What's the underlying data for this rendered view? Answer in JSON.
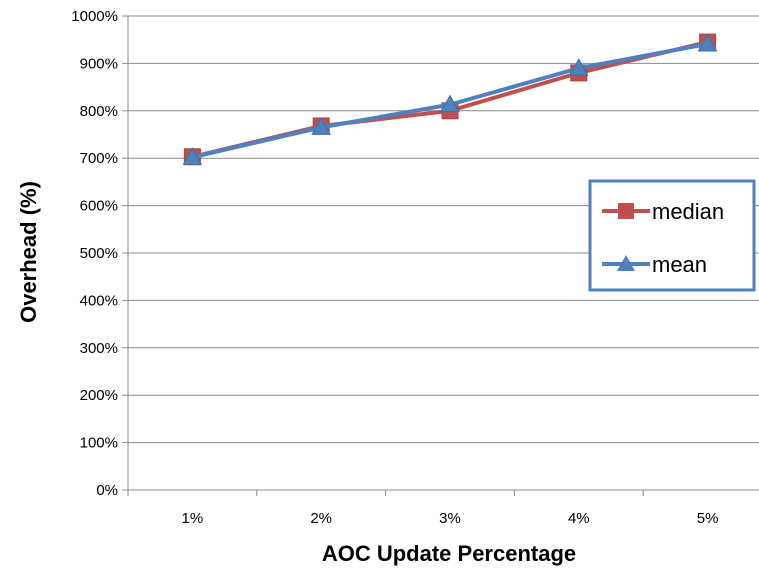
{
  "chart_data": {
    "type": "line",
    "title": "",
    "xlabel": "AOC Update Percentage",
    "ylabel": "Overhead (%)",
    "categories": [
      "1%",
      "2%",
      "3%",
      "4%",
      "5%"
    ],
    "ylim": [
      0,
      1000
    ],
    "ytick_step": 100,
    "ytick_labels": [
      "0%",
      "100%",
      "200%",
      "300%",
      "400%",
      "500%",
      "600%",
      "700%",
      "800%",
      "900%",
      "1000%"
    ],
    "grid": "horizontal",
    "legend_position": "right",
    "series": [
      {
        "name": "median",
        "values": [
          703,
          768,
          800,
          880,
          945
        ],
        "color": "#c0504d",
        "marker": "square"
      },
      {
        "name": "mean",
        "values": [
          702,
          765,
          813,
          890,
          941
        ],
        "color": "#4f81bd",
        "marker": "triangle"
      }
    ]
  }
}
